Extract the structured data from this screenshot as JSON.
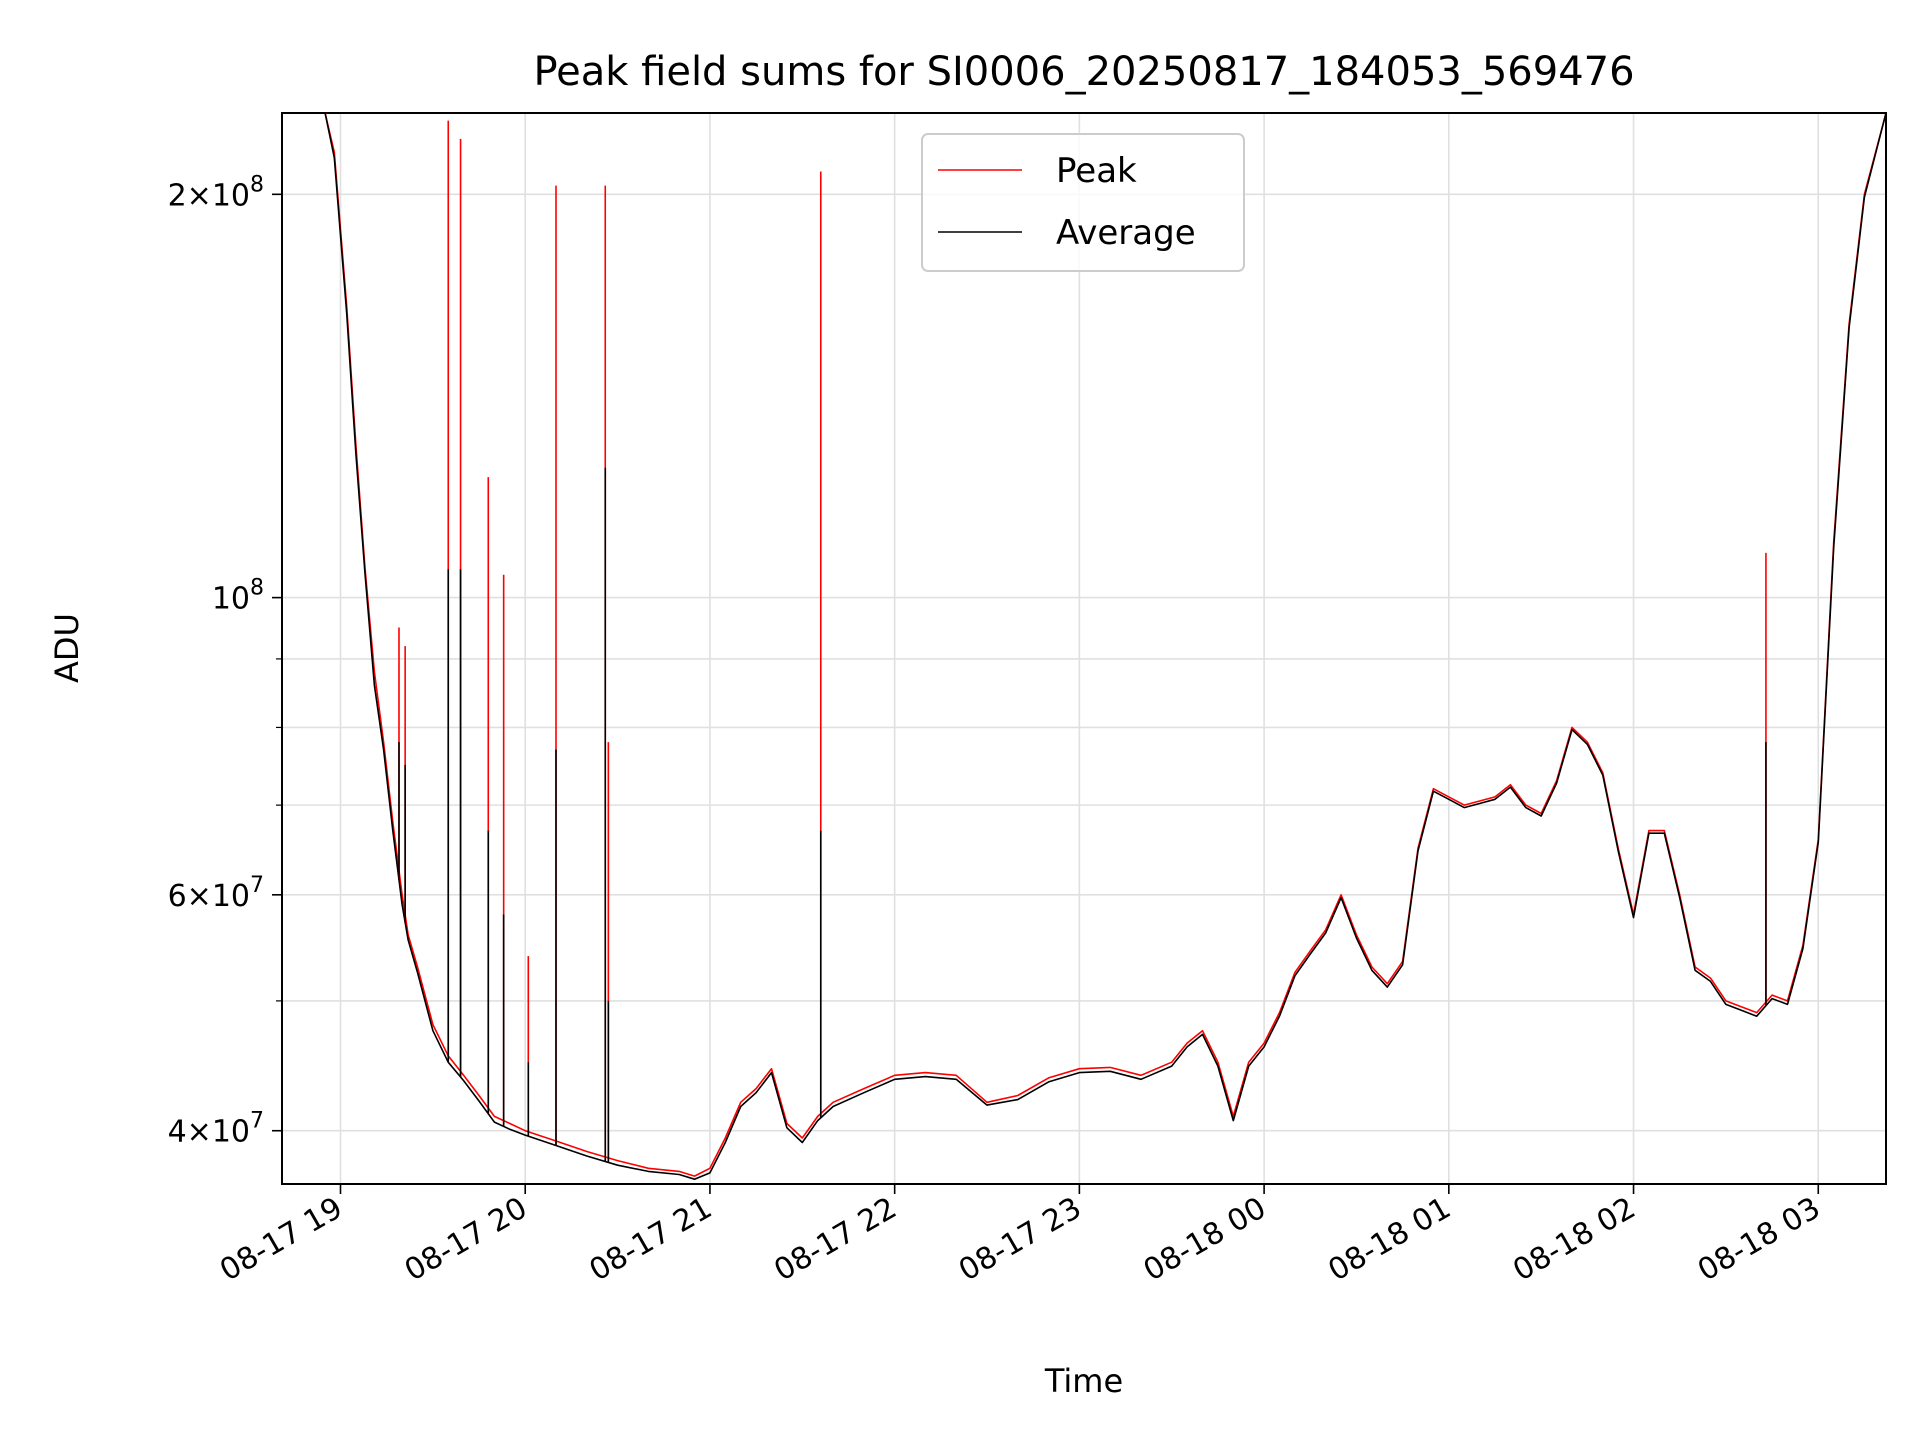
{
  "chart_data": {
    "type": "line",
    "title": "Peak field sums for SI0006_20250817_184053_569476",
    "xlabel": "Time",
    "ylabel": "ADU",
    "yscale": "log",
    "ylim": [
      36500000,
      230000000
    ],
    "xlim": [
      "2025-08-17 18:41",
      "2025-08-18 03:22"
    ],
    "grid": true,
    "legend_position": "upper center",
    "colors": {
      "Peak": "#ff0000",
      "Average": "#000000",
      "grid": "#e0e0e0"
    },
    "x_ticks": [
      {
        "t": "2025-08-17 19:00",
        "label": "08-17 19"
      },
      {
        "t": "2025-08-17 20:00",
        "label": "08-17 20"
      },
      {
        "t": "2025-08-17 21:00",
        "label": "08-17 21"
      },
      {
        "t": "2025-08-17 22:00",
        "label": "08-17 22"
      },
      {
        "t": "2025-08-17 23:00",
        "label": "08-17 23"
      },
      {
        "t": "2025-08-18 00:00",
        "label": "08-18 00"
      },
      {
        "t": "2025-08-18 01:00",
        "label": "08-18 01"
      },
      {
        "t": "2025-08-18 02:00",
        "label": "08-18 02"
      },
      {
        "t": "2025-08-18 03:00",
        "label": "08-18 03"
      }
    ],
    "y_major_ticks": [
      {
        "v": 40000000,
        "mant": "4",
        "exp": "7"
      },
      {
        "v": 60000000,
        "mant": "6",
        "exp": "7"
      },
      {
        "v": 100000000,
        "mant": "",
        "exp": "8"
      },
      {
        "v": 200000000,
        "mant": "2",
        "exp": "8"
      }
    ],
    "y_minor_ticks": [
      50000000,
      70000000,
      80000000,
      90000000
    ],
    "series": [
      {
        "name": "Peak",
        "x": [
          "2025-08-17 18:41",
          "2025-08-17 18:55",
          "2025-08-17 18:58",
          "2025-08-17 19:02",
          "2025-08-17 19:05",
          "2025-08-17 19:08",
          "2025-08-17 19:11",
          "2025-08-17 19:14",
          "2025-08-17 19:17",
          "2025-08-17 19:20",
          "2025-08-17 19:22",
          "2025-08-17 19:25",
          "2025-08-17 19:30",
          "2025-08-17 19:35",
          "2025-08-17 19:40",
          "2025-08-17 19:45",
          "2025-08-17 19:50",
          "2025-08-17 19:55",
          "2025-08-17 20:00",
          "2025-08-17 20:10",
          "2025-08-17 20:20",
          "2025-08-17 20:30",
          "2025-08-17 20:40",
          "2025-08-17 20:50",
          "2025-08-17 20:55",
          "2025-08-17 21:00",
          "2025-08-17 21:05",
          "2025-08-17 21:10",
          "2025-08-17 21:15",
          "2025-08-17 21:20",
          "2025-08-17 21:25",
          "2025-08-17 21:30",
          "2025-08-17 21:35",
          "2025-08-17 21:40",
          "2025-08-17 21:50",
          "2025-08-17 22:00",
          "2025-08-17 22:10",
          "2025-08-17 22:20",
          "2025-08-17 22:30",
          "2025-08-17 22:40",
          "2025-08-17 22:50",
          "2025-08-17 23:00",
          "2025-08-17 23:10",
          "2025-08-17 23:20",
          "2025-08-17 23:30",
          "2025-08-17 23:35",
          "2025-08-17 23:40",
          "2025-08-17 23:45",
          "2025-08-17 23:50",
          "2025-08-17 23:55",
          "2025-08-18 00:00",
          "2025-08-18 00:05",
          "2025-08-18 00:10",
          "2025-08-18 00:15",
          "2025-08-18 00:20",
          "2025-08-18 00:25",
          "2025-08-18 00:30",
          "2025-08-18 00:35",
          "2025-08-18 00:40",
          "2025-08-18 00:45",
          "2025-08-18 00:50",
          "2025-08-18 00:55",
          "2025-08-18 01:00",
          "2025-08-18 01:05",
          "2025-08-18 01:10",
          "2025-08-18 01:15",
          "2025-08-18 01:20",
          "2025-08-18 01:25",
          "2025-08-18 01:30",
          "2025-08-18 01:35",
          "2025-08-18 01:40",
          "2025-08-18 01:45",
          "2025-08-18 01:50",
          "2025-08-18 01:55",
          "2025-08-18 02:00",
          "2025-08-18 02:05",
          "2025-08-18 02:10",
          "2025-08-18 02:15",
          "2025-08-18 02:20",
          "2025-08-18 02:25",
          "2025-08-18 02:30",
          "2025-08-18 02:35",
          "2025-08-18 02:40",
          "2025-08-18 02:45",
          "2025-08-18 02:50",
          "2025-08-18 02:55",
          "2025-08-18 03:00",
          "2025-08-18 03:05",
          "2025-08-18 03:10",
          "2025-08-18 03:15",
          "2025-08-18 03:22"
        ],
        "y": [
          230000000,
          230000000,
          215000000,
          165000000,
          130000000,
          105000000,
          88000000,
          78000000,
          68000000,
          60000000,
          56000000,
          53000000,
          48000000,
          45500000,
          44000000,
          42500000,
          41000000,
          40500000,
          40000000,
          39300000,
          38600000,
          38000000,
          37500000,
          37300000,
          37000000,
          37500000,
          39500000,
          42000000,
          43000000,
          44500000,
          40500000,
          39500000,
          41000000,
          42000000,
          43000000,
          44000000,
          44200000,
          44000000,
          42000000,
          42500000,
          43800000,
          44500000,
          44600000,
          44000000,
          45000000,
          46500000,
          47500000,
          45000000,
          41000000,
          45000000,
          46500000,
          49000000,
          52500000,
          54500000,
          56500000,
          60000000,
          56000000,
          53000000,
          51500000,
          53500000,
          65000000,
          72000000,
          71000000,
          70000000,
          70500000,
          71000000,
          72500000,
          70000000,
          69000000,
          73000000,
          80000000,
          78000000,
          74000000,
          65000000,
          58000000,
          67000000,
          67000000,
          60000000,
          53000000,
          52000000,
          50000000,
          49500000,
          49000000,
          50500000,
          50000000,
          55000000,
          66000000,
          110000000,
          160000000,
          200000000,
          230000000
        ]
      },
      {
        "name": "Average",
        "x": [
          "2025-08-17 18:41",
          "2025-08-17 18:55",
          "2025-08-17 18:58",
          "2025-08-17 19:02",
          "2025-08-17 19:05",
          "2025-08-17 19:08",
          "2025-08-17 19:11",
          "2025-08-17 19:14",
          "2025-08-17 19:17",
          "2025-08-17 19:20",
          "2025-08-17 19:22",
          "2025-08-17 19:25",
          "2025-08-17 19:30",
          "2025-08-17 19:35",
          "2025-08-17 19:40",
          "2025-08-17 19:45",
          "2025-08-17 19:50",
          "2025-08-17 19:55",
          "2025-08-17 20:00",
          "2025-08-17 20:10",
          "2025-08-17 20:20",
          "2025-08-17 20:30",
          "2025-08-17 20:40",
          "2025-08-17 20:50",
          "2025-08-17 20:55",
          "2025-08-17 21:00",
          "2025-08-17 21:05",
          "2025-08-17 21:10",
          "2025-08-17 21:15",
          "2025-08-17 21:20",
          "2025-08-17 21:25",
          "2025-08-17 21:30",
          "2025-08-17 21:35",
          "2025-08-17 21:40",
          "2025-08-17 21:50",
          "2025-08-17 22:00",
          "2025-08-17 22:10",
          "2025-08-17 22:20",
          "2025-08-17 22:30",
          "2025-08-17 22:40",
          "2025-08-17 22:50",
          "2025-08-17 23:00",
          "2025-08-17 23:10",
          "2025-08-17 23:20",
          "2025-08-17 23:30",
          "2025-08-17 23:35",
          "2025-08-17 23:40",
          "2025-08-17 23:45",
          "2025-08-17 23:50",
          "2025-08-17 23:55",
          "2025-08-18 00:00",
          "2025-08-18 00:05",
          "2025-08-18 00:10",
          "2025-08-18 00:15",
          "2025-08-18 00:20",
          "2025-08-18 00:25",
          "2025-08-18 00:30",
          "2025-08-18 00:35",
          "2025-08-18 00:40",
          "2025-08-18 00:45",
          "2025-08-18 00:50",
          "2025-08-18 00:55",
          "2025-08-18 01:00",
          "2025-08-18 01:05",
          "2025-08-18 01:10",
          "2025-08-18 01:15",
          "2025-08-18 01:20",
          "2025-08-18 01:25",
          "2025-08-18 01:30",
          "2025-08-18 01:35",
          "2025-08-18 01:40",
          "2025-08-18 01:45",
          "2025-08-18 01:50",
          "2025-08-18 01:55",
          "2025-08-18 02:00",
          "2025-08-18 02:05",
          "2025-08-18 02:10",
          "2025-08-18 02:15",
          "2025-08-18 02:20",
          "2025-08-18 02:25",
          "2025-08-18 02:30",
          "2025-08-18 02:35",
          "2025-08-18 02:40",
          "2025-08-18 02:45",
          "2025-08-18 02:50",
          "2025-08-18 02:55",
          "2025-08-18 03:00",
          "2025-08-18 03:05",
          "2025-08-18 03:10",
          "2025-08-18 03:15",
          "2025-08-18 03:22"
        ],
        "y": [
          230000000,
          230000000,
          213000000,
          163000000,
          128000000,
          104000000,
          86000000,
          77000000,
          67000000,
          59000000,
          55500000,
          52500000,
          47500000,
          45000000,
          43600000,
          42100000,
          40600000,
          40100000,
          39700000,
          39000000,
          38300000,
          37700000,
          37300000,
          37100000,
          36800000,
          37200000,
          39200000,
          41700000,
          42700000,
          44200000,
          40200000,
          39200000,
          40700000,
          41700000,
          42700000,
          43700000,
          43900000,
          43700000,
          41800000,
          42200000,
          43500000,
          44200000,
          44300000,
          43700000,
          44700000,
          46200000,
          47200000,
          44700000,
          40700000,
          44700000,
          46200000,
          48700000,
          52200000,
          54200000,
          56200000,
          59700000,
          55700000,
          52700000,
          51200000,
          53200000,
          64700000,
          71700000,
          70700000,
          69700000,
          70200000,
          70700000,
          72200000,
          69700000,
          68700000,
          72700000,
          79700000,
          77700000,
          73700000,
          64700000,
          57700000,
          66700000,
          66700000,
          59700000,
          52700000,
          51700000,
          49700000,
          49200000,
          48700000,
          50200000,
          49700000,
          54700000,
          65700000,
          109000000,
          159000000,
          199000000,
          230000000
        ]
      }
    ],
    "spikes": [
      {
        "t": "2025-08-17 19:19",
        "peak": 95000000,
        "average": 78000000
      },
      {
        "t": "2025-08-17 19:21",
        "peak": 92000000,
        "average": 75000000
      },
      {
        "t": "2025-08-17 19:35",
        "peak": 227000000,
        "average": 105000000
      },
      {
        "t": "2025-08-17 19:39",
        "peak": 220000000,
        "average": 105000000
      },
      {
        "t": "2025-08-17 19:48",
        "peak": 123000000,
        "average": 67000000
      },
      {
        "t": "2025-08-17 19:53",
        "peak": 104000000,
        "average": 58000000
      },
      {
        "t": "2025-08-17 20:01",
        "peak": 54000000,
        "average": 45000000
      },
      {
        "t": "2025-08-17 20:10",
        "peak": 203000000,
        "average": 77000000
      },
      {
        "t": "2025-08-17 20:26",
        "peak": 203000000,
        "average": 125000000
      },
      {
        "t": "2025-08-17 20:27",
        "peak": 78000000,
        "average": 50000000
      },
      {
        "t": "2025-08-17 21:36",
        "peak": 208000000,
        "average": 67000000
      },
      {
        "t": "2025-08-18 02:43",
        "peak": 108000000,
        "average": 78000000
      }
    ]
  }
}
